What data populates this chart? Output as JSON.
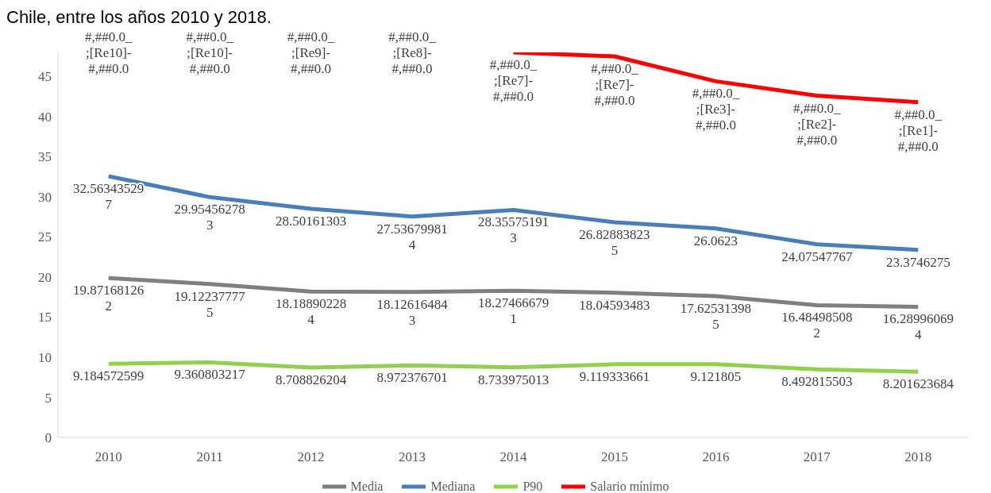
{
  "chart_data": {
    "type": "line",
    "title": "Chile, entre los años 2010 y 2018.",
    "categories": [
      "2010",
      "2011",
      "2012",
      "2013",
      "2014",
      "2015",
      "2016",
      "2017",
      "2018"
    ],
    "ylim": [
      0,
      48
    ],
    "yticks": [
      0,
      5,
      10,
      15,
      20,
      25,
      30,
      35,
      40,
      45
    ],
    "grid": false,
    "legend": "bottom",
    "series": [
      {
        "name": "Media",
        "color": "#7f7f7f",
        "values": [
          19.871681262,
          19.122377775,
          18.188902284,
          18.126164843,
          18.274666791,
          18.04593483,
          17.625313985,
          16.484985082,
          16.289960694
        ],
        "value_labels": [
          "19.871681262",
          "19.122377775",
          "18.188902284",
          "18.126164843",
          "18.274666791",
          "18.04593483",
          "17.625313985",
          "16.484985082",
          "16.289960694"
        ]
      },
      {
        "name": "Mediana",
        "color": "#4a7ebb",
        "values": [
          32.563435297,
          29.954562783,
          28.50161303,
          27.536799814,
          28.355751913,
          26.828838235,
          26.0623,
          24.07547767,
          23.3746275
        ],
        "value_labels": [
          "32.563435297",
          "29.954562783",
          "28.50161303",
          "27.536799814",
          "28.355751913",
          "26.828838235",
          "26.0623",
          "24.07547767",
          "23.3746275"
        ]
      },
      {
        "name": "P90",
        "color": "#92d050",
        "values": [
          9.184572599,
          9.360803217,
          8.708826204,
          8.972376701,
          8.733975013,
          9.119333661,
          9.121805,
          8.492815503,
          8.201623684
        ],
        "value_labels": [
          "9.184572599",
          "9.360803217",
          "8.708826204",
          "8.972376701",
          "8.733975013",
          "9.119333661",
          "9.121805",
          "8.492815503",
          "8.201623684"
        ]
      },
      {
        "name": "Salario mínimo",
        "color": "#ff0000",
        "values": [
          null,
          null,
          null,
          null,
          48,
          47.5,
          44.4,
          42.6,
          41.8
        ],
        "value_labels": [
          "#,##0.0_;[Re10]-#,##0.0",
          "#,##0.0_;[Re10]-#,##0.0",
          "#,##0.0_;[Re9]-#,##0.0",
          "#,##0.0_;[Re8]-#,##0.0",
          "#,##0.0_;[Re7]-#,##0.0",
          "#,##0.0_;[Re7]-#,##0.0",
          "#,##0.0_;[Re3]-#,##0.0",
          "#,##0.0_;[Re2]-#,##0.0",
          "#,##0.0_;[Re1]-#,##0.0"
        ]
      }
    ]
  }
}
